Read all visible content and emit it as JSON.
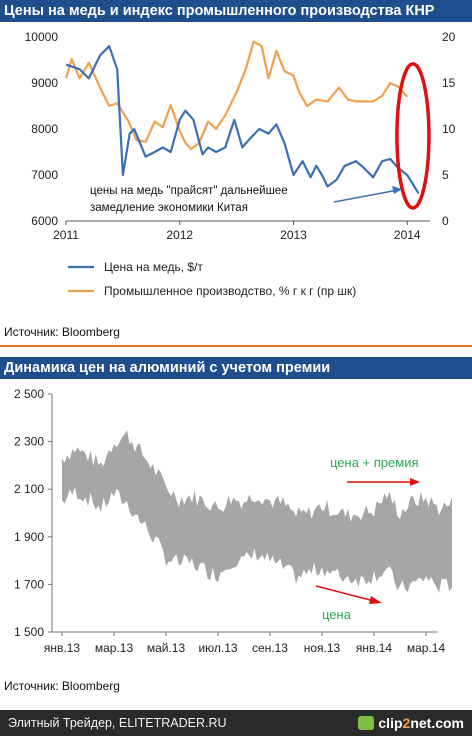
{
  "chart1": {
    "title": "Цены на медь и индекс промышленного производства КНР",
    "source": "Источник: Bloomberg",
    "annotation_lines": [
      "цены на медь \"прайсят\" дальнейшее",
      "замедление экономики Китая"
    ],
    "legend": {
      "copper": "Цена на медь, $/т",
      "ip": "Промышленное производство, % г к г (пр шк)"
    },
    "colors": {
      "copper": "#3b6fb6",
      "ip": "#f0a050",
      "annotation_arrow": "#3b6fb6",
      "ellipse": "#e01010"
    }
  },
  "chart2": {
    "title": "Динамика цен на алюминий с учетом премии",
    "source": "Источник: Bloomberg",
    "labels": {
      "premium": "цена + премия",
      "price": "цена"
    },
    "colors": {
      "band": "#a6a6a6",
      "label": "#2fa84f",
      "arrow": "#e01010"
    }
  },
  "footer": {
    "left": "Элитный Трейдер, ELITETRADER.RU",
    "brand_a": "clip",
    "brand_b": "2",
    "brand_c": "net.com"
  },
  "chart_data": [
    {
      "type": "line",
      "title": "Цены на медь и индекс промышленного производства КНР",
      "x_ticks": [
        "2011",
        "2012",
        "2013",
        "2014"
      ],
      "xlim": [
        2011.0,
        2014.2
      ],
      "y_ticks_left": [
        "6000",
        "7000",
        "8000",
        "9000",
        "10000"
      ],
      "ylim_left": [
        6000,
        10000
      ],
      "y_ticks_right": [
        "0",
        "5",
        "10",
        "15",
        "20"
      ],
      "ylim_right": [
        0,
        20
      ],
      "series": [
        {
          "name": "Цена на медь, $/т",
          "axis": "left",
          "x": [
            2011.0,
            2011.12,
            2011.2,
            2011.3,
            2011.38,
            2011.45,
            2011.5,
            2011.56,
            2011.6,
            2011.65,
            2011.7,
            2011.78,
            2011.85,
            2011.92,
            2012.0,
            2012.05,
            2012.12,
            2012.2,
            2012.25,
            2012.32,
            2012.4,
            2012.48,
            2012.55,
            2012.62,
            2012.7,
            2012.78,
            2012.85,
            2012.92,
            2013.0,
            2013.08,
            2013.15,
            2013.2,
            2013.25,
            2013.3,
            2013.38,
            2013.45,
            2013.55,
            2013.62,
            2013.7,
            2013.78,
            2013.85,
            2013.92,
            2014.0,
            2014.05,
            2014.1
          ],
          "y": [
            9400,
            9300,
            9100,
            9600,
            9800,
            9300,
            7000,
            7900,
            8000,
            7700,
            7400,
            7500,
            7600,
            7500,
            8200,
            8400,
            8200,
            7450,
            7600,
            7500,
            7600,
            8200,
            7600,
            7800,
            8000,
            7900,
            8100,
            7700,
            7000,
            7300,
            6950,
            7200,
            7000,
            6750,
            6900,
            7200,
            7300,
            7150,
            6950,
            7300,
            7350,
            7150,
            7000,
            6800,
            6600
          ]
        },
        {
          "name": "Промышленное производство, % г к г (пр шк)",
          "axis": "right",
          "x": [
            2011.0,
            2011.05,
            2011.12,
            2011.2,
            2011.3,
            2011.38,
            2011.45,
            2011.55,
            2011.62,
            2011.7,
            2011.78,
            2011.85,
            2011.92,
            2012.0,
            2012.05,
            2012.1,
            2012.17,
            2012.25,
            2012.32,
            2012.4,
            2012.5,
            2012.58,
            2012.65,
            2012.72,
            2012.78,
            2012.85,
            2012.92,
            2013.0,
            2013.05,
            2013.12,
            2013.2,
            2013.3,
            2013.4,
            2013.48,
            2013.55,
            2013.62,
            2013.7,
            2013.78,
            2013.85,
            2013.92,
            2014.0
          ],
          "y": [
            15.5,
            17.6,
            15.5,
            17.2,
            14.5,
            12.5,
            12.8,
            10.8,
            8.8,
            8.6,
            10.8,
            10.2,
            12.6,
            9.8,
            8.5,
            7.8,
            8.5,
            10.8,
            10.0,
            11.5,
            14.0,
            16.5,
            19.5,
            19.0,
            15.5,
            18.5,
            16.3,
            15.8,
            14.0,
            12.5,
            13.2,
            13.0,
            14.5,
            13.2,
            13.0,
            13.0,
            13.0,
            13.6,
            15.0,
            14.6,
            13.5
          ]
        }
      ],
      "legend_position": "bottom"
    },
    {
      "type": "area",
      "title": "Динамика цен на алюминий с учетом премии",
      "x_ticks": [
        "янв.13",
        "мар.13",
        "май.13",
        "июл.13",
        "сен.13",
        "ноя.13",
        "янв.14",
        "мар.14"
      ],
      "y_ticks": [
        "1 500",
        "1 700",
        "1 900",
        "2 100",
        "2 300",
        "2 500"
      ],
      "ylim": [
        1500,
        2500
      ],
      "series": [
        {
          "name": "цена + премия",
          "x": [
            0.0,
            0.25,
            0.5,
            0.75,
            1.0,
            1.25,
            1.5,
            1.75,
            2.0,
            2.25,
            2.5,
            2.75,
            3.0,
            3.25,
            3.5,
            3.75,
            4.0,
            4.25,
            4.5,
            4.75,
            5.0,
            5.25,
            5.5,
            5.75,
            6.0,
            6.25,
            6.5,
            6.75,
            7.0,
            7.25,
            7.5
          ],
          "y": [
            2230,
            2270,
            2240,
            2200,
            2300,
            2330,
            2260,
            2190,
            2110,
            2060,
            2070,
            2050,
            2020,
            2060,
            2050,
            2080,
            2050,
            2040,
            1990,
            2000,
            2030,
            2010,
            1990,
            2000,
            2010,
            2080,
            2000,
            2050,
            2060,
            2020,
            2040
          ]
        },
        {
          "name": "цена",
          "x": [
            0.0,
            0.25,
            0.5,
            0.75,
            1.0,
            1.25,
            1.5,
            1.75,
            2.0,
            2.25,
            2.5,
            2.75,
            3.0,
            3.25,
            3.5,
            3.75,
            4.0,
            4.25,
            4.5,
            4.75,
            5.0,
            5.25,
            5.5,
            5.75,
            6.0,
            6.25,
            6.5,
            6.75,
            7.0,
            7.25,
            7.5
          ],
          "y": [
            2050,
            2090,
            2060,
            2020,
            2080,
            2040,
            1970,
            1900,
            1810,
            1790,
            1790,
            1760,
            1740,
            1800,
            1800,
            1830,
            1800,
            1770,
            1730,
            1750,
            1770,
            1740,
            1730,
            1720,
            1740,
            1760,
            1680,
            1700,
            1730,
            1690,
            1700
          ]
        }
      ]
    }
  ]
}
